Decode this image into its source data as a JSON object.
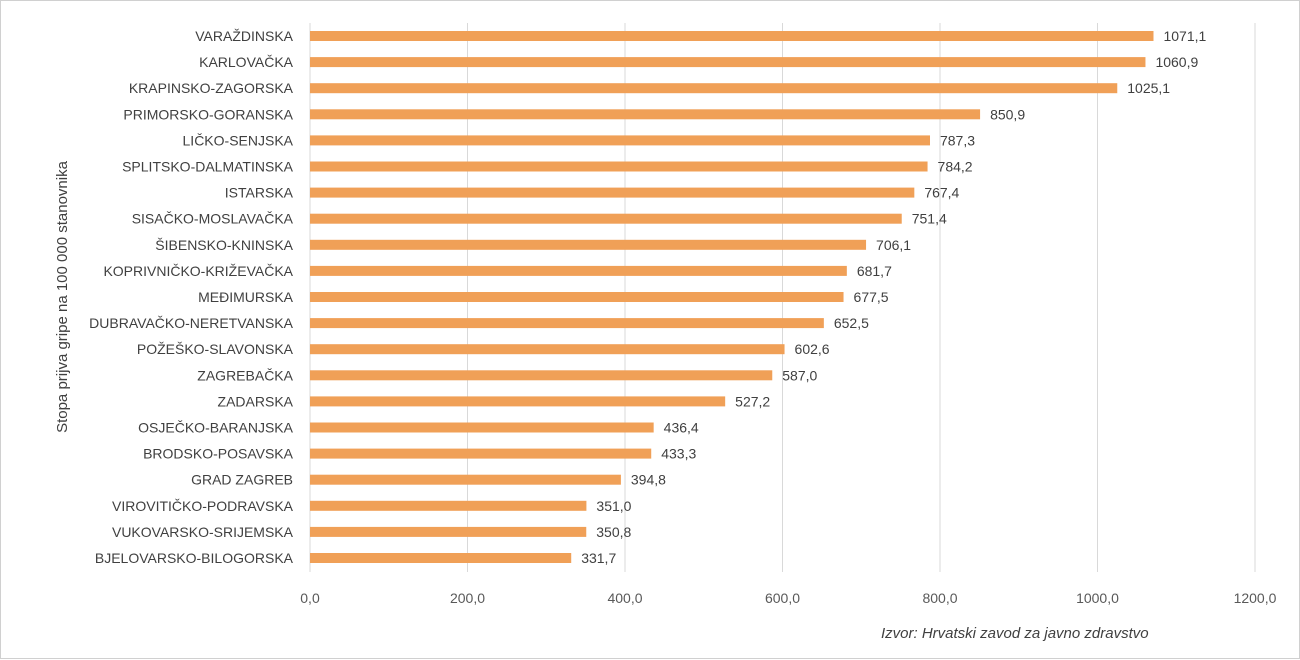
{
  "chart_data": {
    "type": "bar",
    "orientation": "horizontal",
    "ylabel": "Stopa prijva gripe na 100 000 stanovnika",
    "xlim": [
      0,
      1200
    ],
    "xticks": [
      "0,0",
      "200,0",
      "400,0",
      "600,0",
      "800,0",
      "1000,0",
      "1200,0"
    ],
    "grid": true,
    "bar_color": "#F0A057",
    "categories": [
      "VARAŽDINSKA",
      "KARLOVAČKA",
      "KRAPINSKO-ZAGORSKA",
      "PRIMORSKO-GORANSKA",
      "LIČKO-SENJSKA",
      "SPLITSKO-DALMATINSKA",
      "ISTARSKA",
      "SISAČKO-MOSLAVAČKA",
      "ŠIBENSKO-KNINSKA",
      "KOPRIVNIČKO-KRIŽEVAČKA",
      "MEĐIMURSKA",
      "DUBRAVAČKO-NERETVANSKA",
      "POŽEŠKO-SLAVONSKA",
      "ZAGREBAČKA",
      "ZADARSKA",
      "OSJEČKO-BARANJSKA",
      "BRODSKO-POSAVSKA",
      "GRAD ZAGREB",
      "VIROVITIČKO-PODRAVSKA",
      "VUKOVARSKO-SRIJEMSKA",
      "BJELOVARSKO-BILOGORSKA"
    ],
    "values": [
      1071.1,
      1060.9,
      1025.1,
      850.9,
      787.3,
      784.2,
      767.4,
      751.4,
      706.1,
      681.7,
      677.5,
      652.5,
      602.6,
      587.0,
      527.2,
      436.4,
      433.3,
      394.8,
      351.0,
      350.8,
      331.7
    ],
    "value_labels": [
      "1071,1",
      "1060,9",
      "1025,1",
      "850,9",
      "787,3",
      "784,2",
      "767,4",
      "751,4",
      "706,1",
      "681,7",
      "677,5",
      "652,5",
      "602,6",
      "587,0",
      "527,2",
      "436,4",
      "433,3",
      "394,8",
      "351,0",
      "350,8",
      "331,7"
    ]
  },
  "source": "Izvor: Hrvatski zavod za javno zdravstvo"
}
